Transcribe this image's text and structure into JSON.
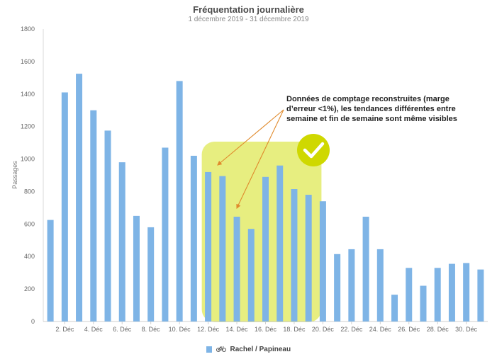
{
  "chart_data": {
    "type": "bar",
    "title": "Fréquentation journalière",
    "subtitle": "1 décembre 2019 - 31 décembre 2019",
    "ylabel": "Passages",
    "xlabel": "",
    "ylim": [
      0,
      1800
    ],
    "yticks": [
      0,
      200,
      400,
      600,
      800,
      1000,
      1200,
      1400,
      1600,
      1800
    ],
    "tick_labels": [
      "",
      "2. Déc",
      "",
      "4. Déc",
      "",
      "6. Déc",
      "",
      "8. Déc",
      "",
      "10. Déc",
      "",
      "12. Déc",
      "",
      "14. Déc",
      "",
      "16. Déc",
      "",
      "18. Déc",
      "",
      "20. Déc",
      "",
      "22. Déc",
      "",
      "24. Déc",
      "",
      "26. Déc",
      "",
      "28. Déc",
      "",
      "30. Déc",
      ""
    ],
    "series": [
      {
        "name": "Rachel / Papineau",
        "color": "#7eb4e6",
        "values": [
          625,
          1410,
          1525,
          1300,
          1175,
          980,
          650,
          580,
          1070,
          1480,
          1020,
          920,
          895,
          645,
          570,
          890,
          960,
          815,
          780,
          740,
          415,
          445,
          645,
          445,
          165,
          330,
          220,
          330,
          355,
          360,
          320
        ]
      }
    ],
    "grid": false,
    "legend": "bottom-center",
    "highlight": {
      "from_category": 11,
      "to_category": 19,
      "color": "#e3eb6a",
      "check_color": "#cfd800",
      "check_icon": "checkmark-icon"
    },
    "annotation": {
      "text": "Données de comptage reconstruites (marge d’erreur <1%), les tendances différentes entre semaine et fin de semaine sont même visibles",
      "arrow_color": "#e08a2c"
    },
    "legend_icon": "bicycle-icon"
  }
}
